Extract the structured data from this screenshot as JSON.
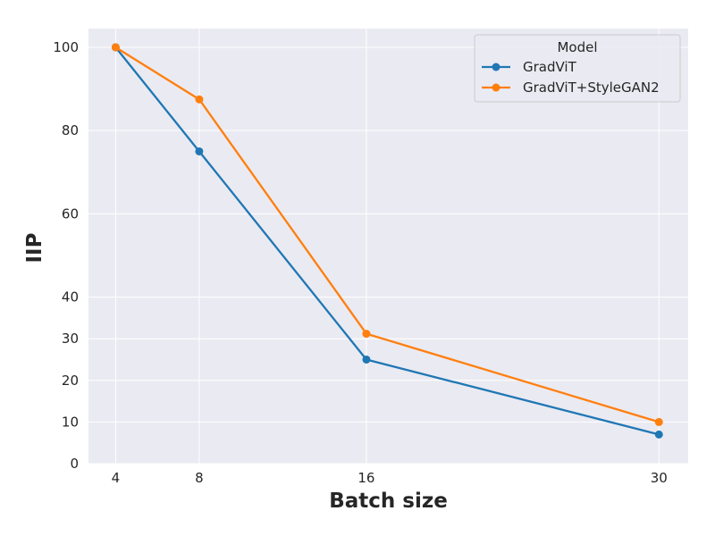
{
  "chart_data": {
    "type": "line",
    "title": "",
    "xlabel": "Batch size",
    "ylabel": "IIP",
    "x": [
      4,
      8,
      16,
      30
    ],
    "x_tick_labels": [
      "4",
      "8",
      "16",
      "30"
    ],
    "xlim": [
      2.7,
      31.4
    ],
    "ylim": [
      0,
      104.5
    ],
    "y_ticks": [
      0,
      10,
      20,
      30,
      40,
      60,
      80,
      100
    ],
    "y_tick_labels": [
      "0",
      "10",
      "20",
      "30",
      "40",
      "60",
      "80",
      "100"
    ],
    "grid": true,
    "legend": {
      "title": "Model",
      "position": "top-right"
    },
    "series": [
      {
        "name": "GradViT",
        "color": "#1f77b4",
        "values": [
          100,
          75,
          25,
          7
        ]
      },
      {
        "name": "GradViT+StyleGAN2",
        "color": "#ff7f0e",
        "values": [
          100,
          87.5,
          31.2,
          10
        ]
      }
    ],
    "colors": {
      "plot_background": "#eaeaf2",
      "grid": "#ffffff",
      "text": "#262626"
    }
  }
}
